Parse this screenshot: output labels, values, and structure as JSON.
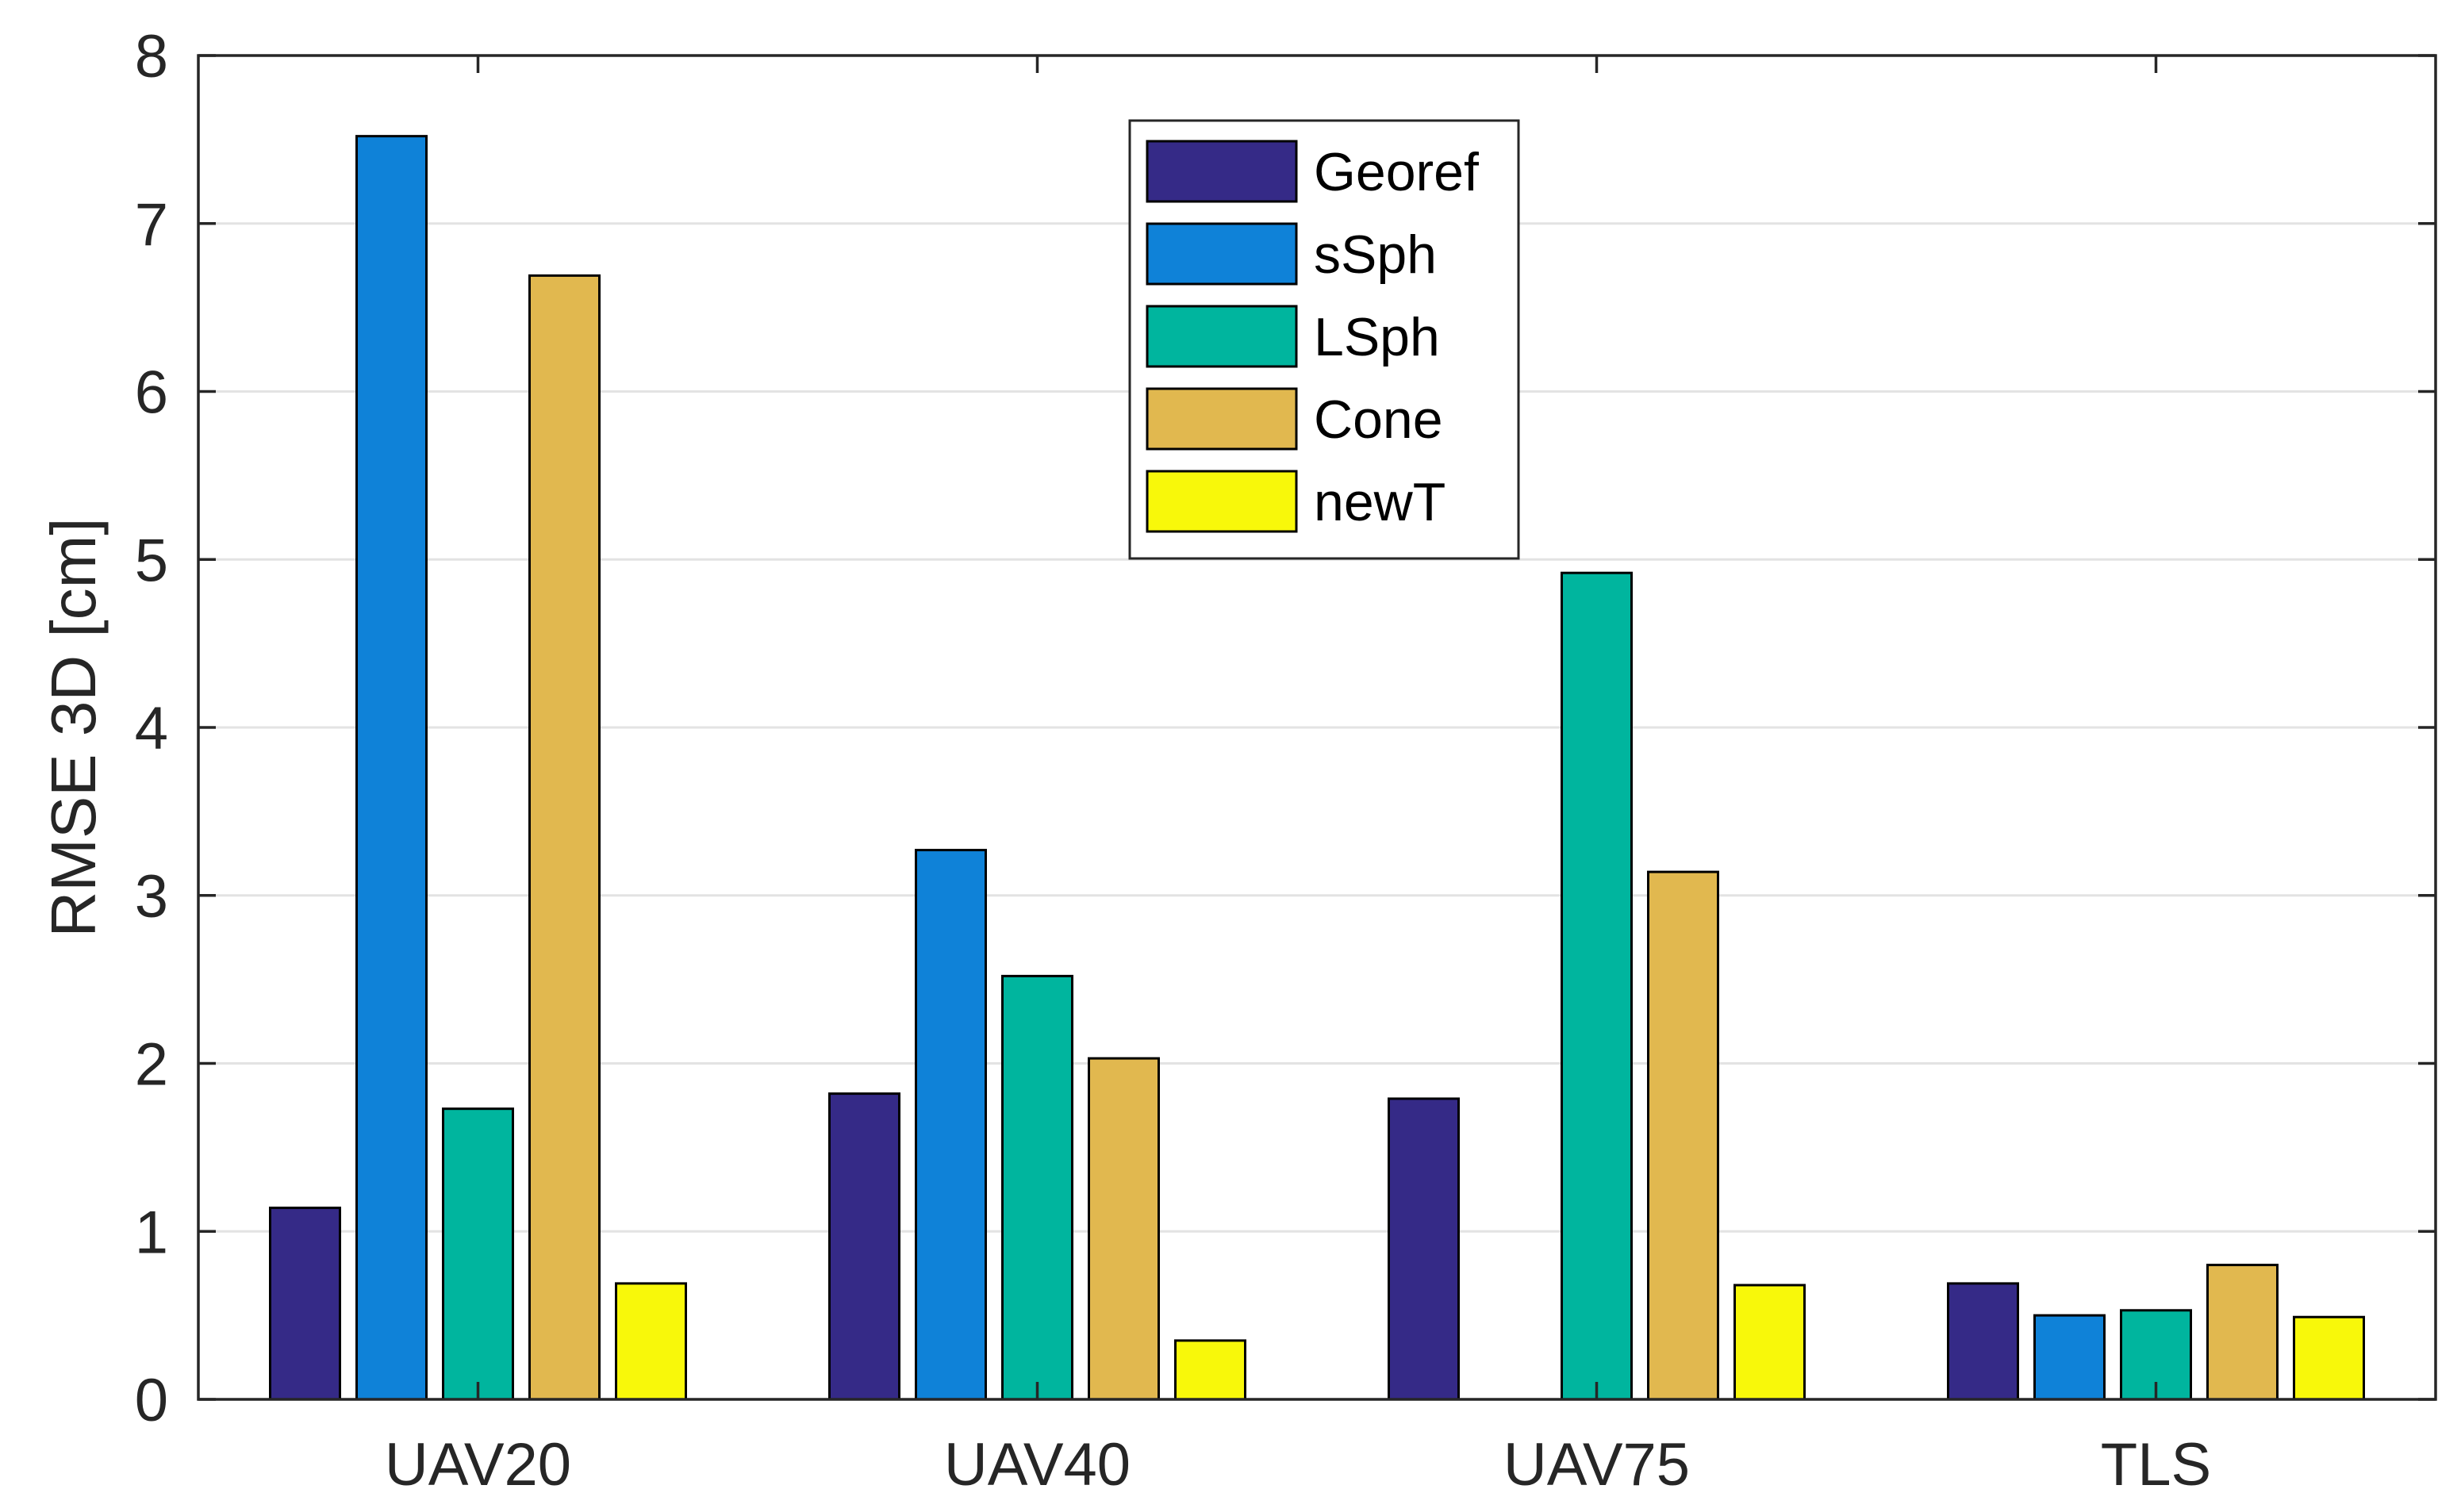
{
  "chart_data": {
    "type": "bar",
    "title": "",
    "xlabel": "",
    "ylabel": "RMSE 3D [cm]",
    "ylim": [
      0,
      8
    ],
    "yticks": [
      0,
      1,
      2,
      3,
      4,
      5,
      6,
      7,
      8
    ],
    "grid": true,
    "legend_position": "top-center",
    "categories": [
      "UAV20",
      "UAV40",
      "UAV75",
      "TLS"
    ],
    "series": [
      {
        "name": "Georef",
        "color": "#352a87",
        "values": [
          1.14,
          1.82,
          1.79,
          0.69
        ]
      },
      {
        "name": "sSph",
        "color": "#0f82d8",
        "values": [
          7.52,
          3.27,
          0.0,
          0.5
        ]
      },
      {
        "name": "LSph",
        "color": "#00b59e",
        "values": [
          1.73,
          2.52,
          4.92,
          0.53
        ]
      },
      {
        "name": "Cone",
        "color": "#e1b84f",
        "values": [
          6.69,
          2.03,
          3.14,
          0.8
        ]
      },
      {
        "name": "newT",
        "color": "#f8f80a",
        "values": [
          0.69,
          0.35,
          0.68,
          0.49
        ]
      }
    ]
  }
}
